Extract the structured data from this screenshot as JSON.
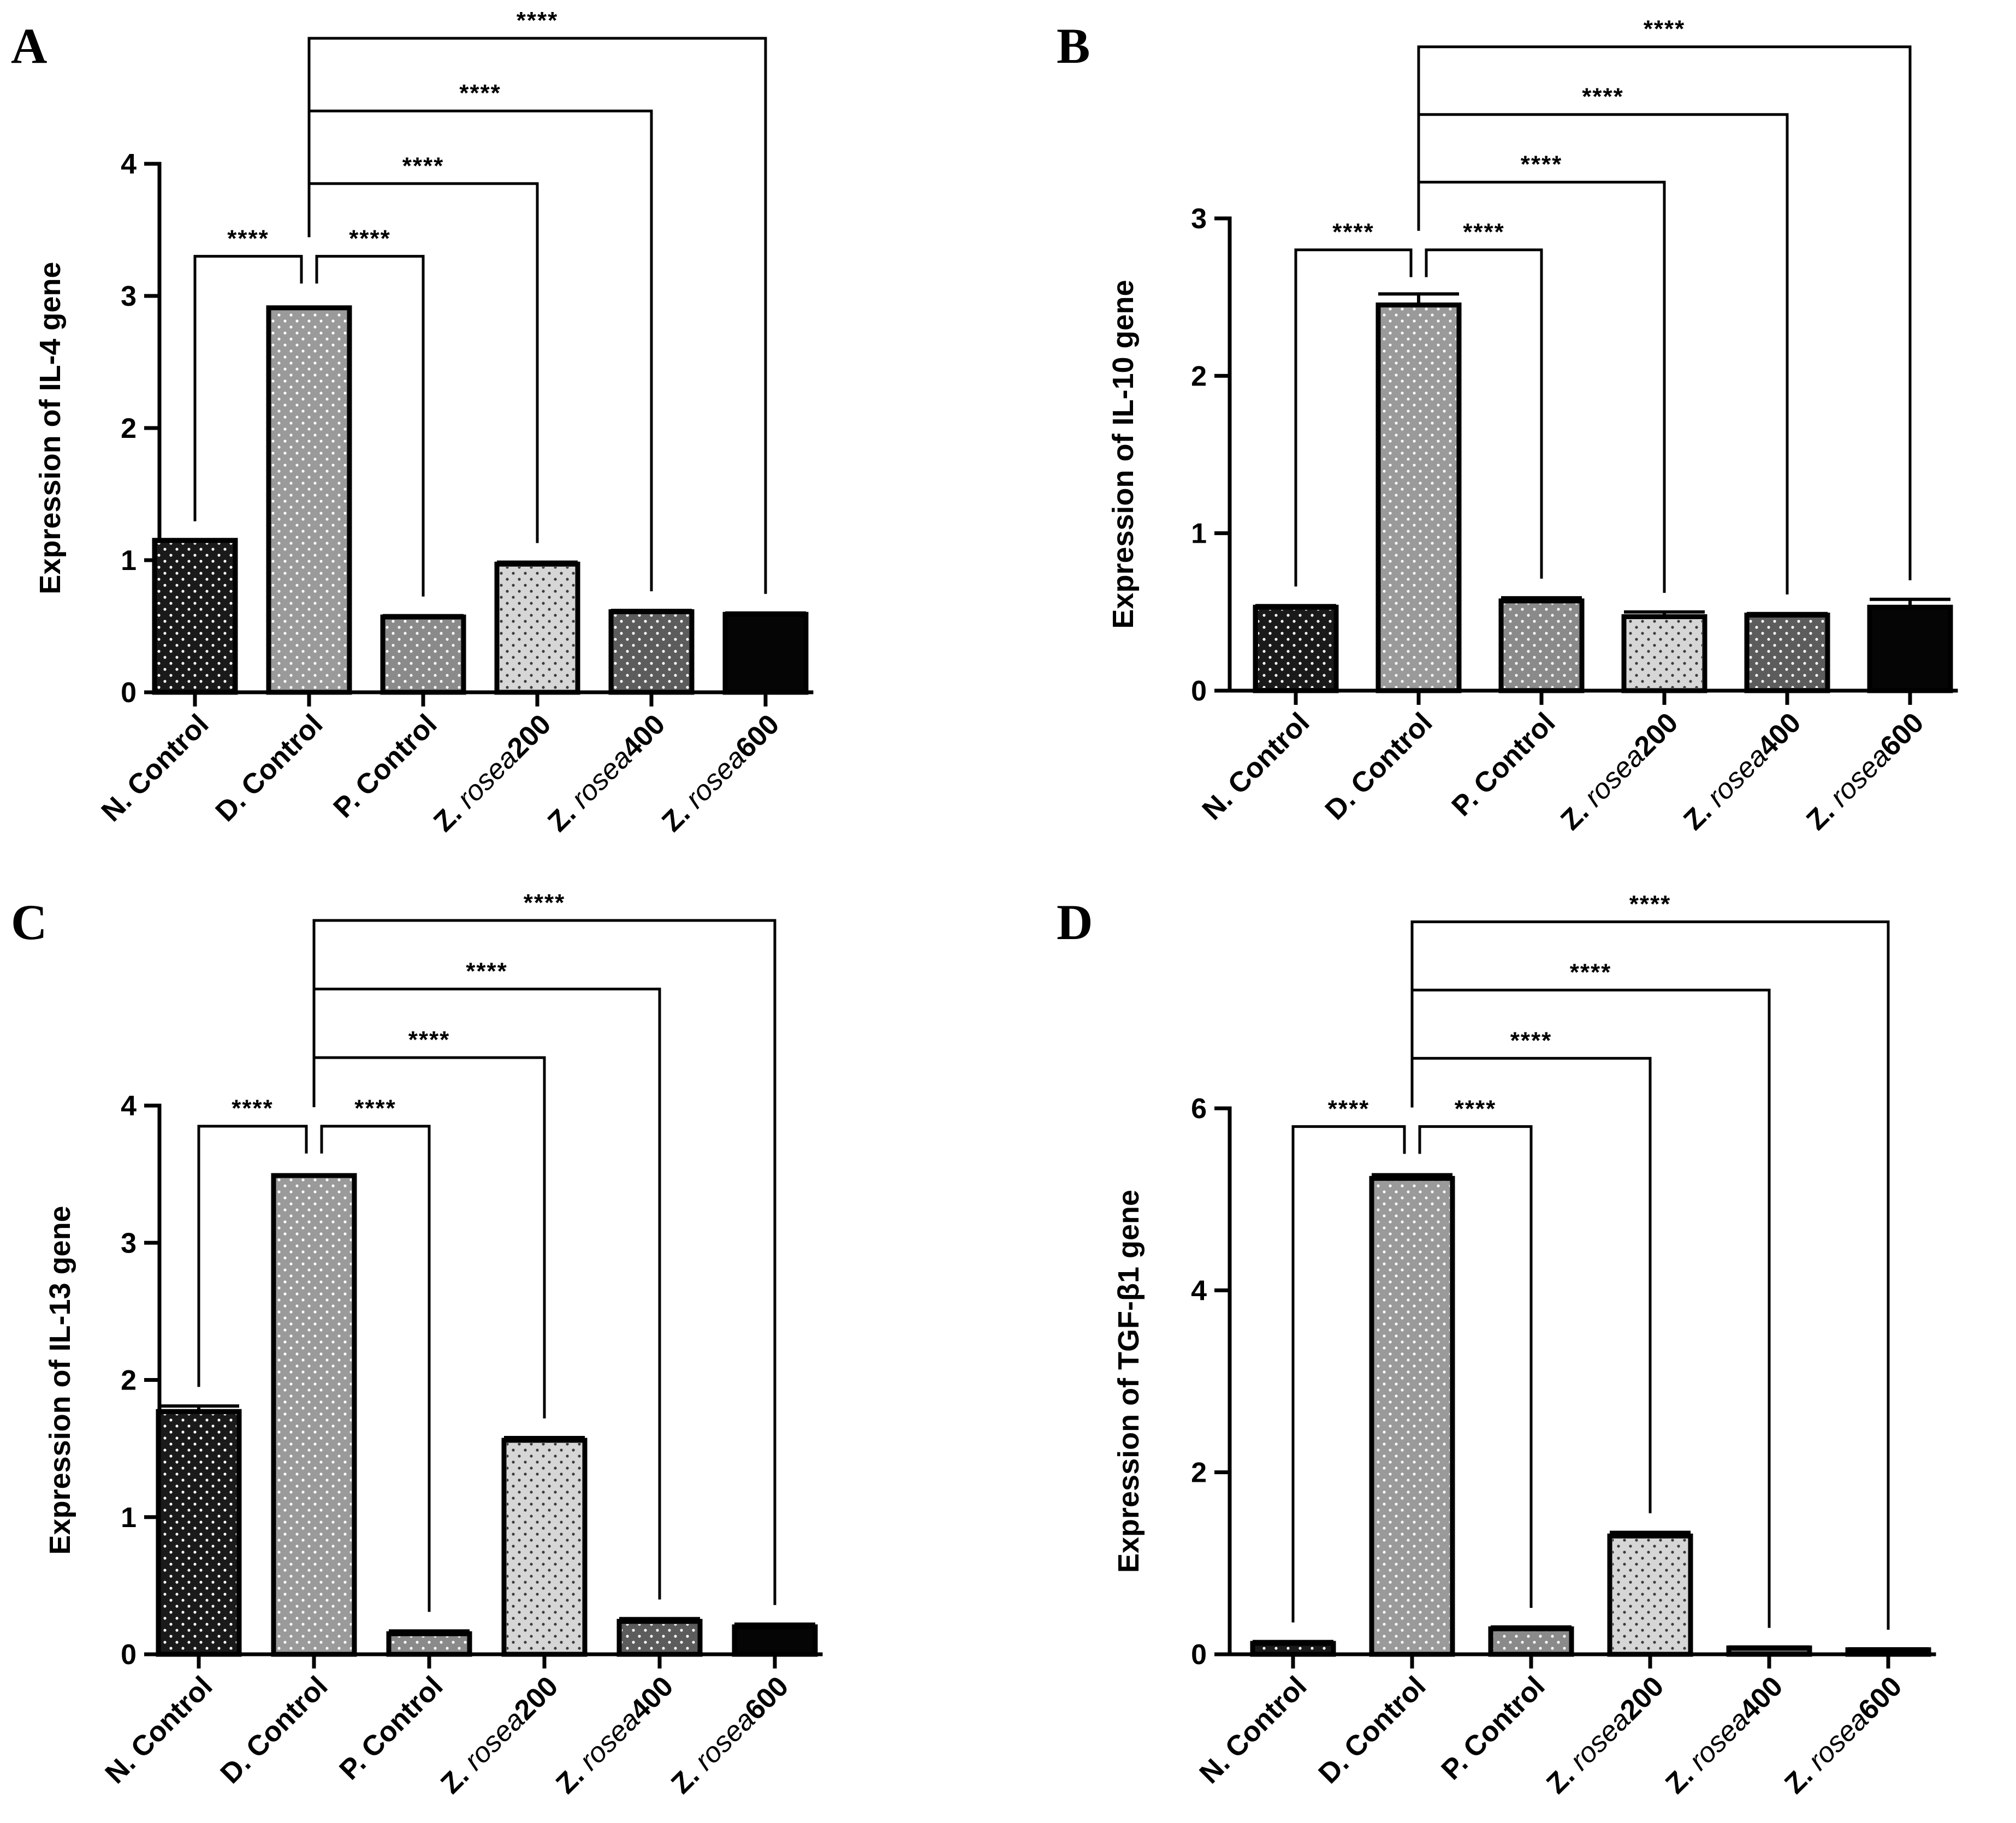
{
  "chart_data": [
    {
      "panel": "A",
      "type": "bar",
      "ylabel": "Expression of IL-4 gene",
      "ylim": [
        0,
        4
      ],
      "yticks": [
        0,
        1,
        2,
        3,
        4
      ],
      "values": [
        1.15,
        2.91,
        0.57,
        0.97,
        0.61,
        0.59
      ],
      "errors": [
        0.0,
        0.0,
        0.01,
        0.015,
        0.01,
        0.01
      ],
      "significance": [
        {
          "from": 0,
          "to": 1,
          "label": "****",
          "level": 3.3
        },
        {
          "from": 1,
          "to": 2,
          "label": "****",
          "level": 3.3
        },
        {
          "from": 1,
          "to": 3,
          "label": "****",
          "level": 3.85
        },
        {
          "from": 1,
          "to": 4,
          "label": "****",
          "level": 4.4
        },
        {
          "from": 1,
          "to": 5,
          "label": "****",
          "level": 4.95
        }
      ]
    },
    {
      "panel": "B",
      "type": "bar",
      "ylabel": "Expression of IL-10 gene",
      "ylim": [
        0,
        3
      ],
      "yticks": [
        0,
        1,
        2,
        3
      ],
      "values": [
        0.53,
        2.45,
        0.57,
        0.47,
        0.48,
        0.53
      ],
      "errors": [
        0.01,
        0.07,
        0.02,
        0.03,
        0.01,
        0.05
      ],
      "significance": [
        {
          "from": 0,
          "to": 1,
          "label": "****",
          "level": 2.8
        },
        {
          "from": 1,
          "to": 2,
          "label": "****",
          "level": 2.8
        },
        {
          "from": 1,
          "to": 3,
          "label": "****",
          "level": 3.23
        },
        {
          "from": 1,
          "to": 4,
          "label": "****",
          "level": 3.66
        },
        {
          "from": 1,
          "to": 5,
          "label": "****",
          "level": 4.09
        }
      ]
    },
    {
      "panel": "C",
      "type": "bar",
      "ylabel": "Expression of IL-13 gene",
      "ylim": [
        0,
        4
      ],
      "yticks": [
        0,
        1,
        2,
        3,
        4
      ],
      "values": [
        1.77,
        3.49,
        0.15,
        1.56,
        0.24,
        0.2
      ],
      "errors": [
        0.04,
        0.0,
        0.02,
        0.02,
        0.02,
        0.02
      ],
      "significance": [
        {
          "from": 0,
          "to": 1,
          "label": "****",
          "level": 3.85
        },
        {
          "from": 1,
          "to": 2,
          "label": "****",
          "level": 3.85
        },
        {
          "from": 1,
          "to": 3,
          "label": "****",
          "level": 4.35
        },
        {
          "from": 1,
          "to": 4,
          "label": "****",
          "level": 4.85
        },
        {
          "from": 1,
          "to": 5,
          "label": "****",
          "level": 5.35
        }
      ]
    },
    {
      "panel": "D",
      "type": "bar",
      "ylabel": "Expression of TGF-β1 gene",
      "ylim": [
        0,
        6
      ],
      "yticks": [
        0,
        2,
        4,
        6
      ],
      "values": [
        0.12,
        5.23,
        0.28,
        1.3,
        0.07,
        0.05
      ],
      "errors": [
        0.02,
        0.04,
        0.02,
        0.04,
        0.01,
        0.01
      ],
      "significance": [
        {
          "from": 0,
          "to": 1,
          "label": "****",
          "level": 5.8
        },
        {
          "from": 1,
          "to": 2,
          "label": "****",
          "level": 5.8
        },
        {
          "from": 1,
          "to": 3,
          "label": "****",
          "level": 6.55
        },
        {
          "from": 1,
          "to": 4,
          "label": "****",
          "level": 7.3
        },
        {
          "from": 1,
          "to": 5,
          "label": "****",
          "level": 8.05
        }
      ]
    }
  ],
  "categories": [
    {
      "prefix": "N. Control",
      "italic": "",
      "suffix": ""
    },
    {
      "prefix": "D. Control",
      "italic": "",
      "suffix": ""
    },
    {
      "prefix": "P. Control",
      "italic": "",
      "suffix": ""
    },
    {
      "prefix": "Z. ",
      "italic": "rosea",
      "suffix": "200"
    },
    {
      "prefix": "Z. ",
      "italic": "rosea",
      "suffix": "400"
    },
    {
      "prefix": "Z. ",
      "italic": "rosea",
      "suffix": "600"
    }
  ],
  "bar_colors": [
    "#1a1a1a",
    "#9a9a9a",
    "#8a8a8a",
    "#d6d6d6",
    "#5c5c5c",
    "#050505"
  ]
}
